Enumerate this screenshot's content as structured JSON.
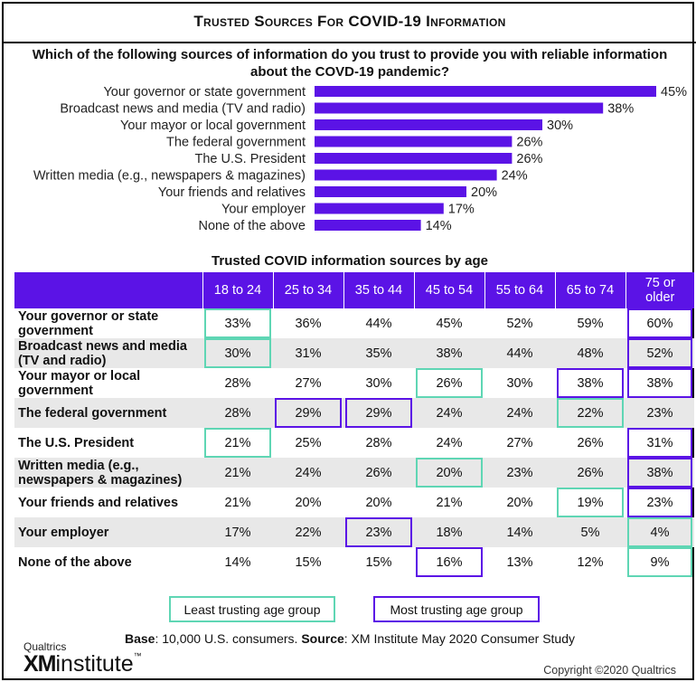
{
  "title": "Trusted Sources For COVID-19 Information",
  "question": "Which of the following sources of information do you trust to provide you with reliable information about the COVD-19 pandemic?",
  "chart_data": [
    {
      "type": "bar",
      "orientation": "horizontal",
      "categories": [
        "Your governor or state government",
        "Broadcast news and media (TV and radio)",
        "Your mayor or local government",
        "The federal government",
        "The U.S. President",
        "Written media (e.g., newspapers & magazines)",
        "Your friends and relatives",
        "Your employer",
        "None of the above"
      ],
      "values": [
        45,
        38,
        30,
        26,
        26,
        24,
        20,
        17,
        14
      ],
      "value_labels": [
        "45%",
        "38%",
        "30%",
        "26%",
        "26%",
        "24%",
        "20%",
        "17%",
        "14%"
      ],
      "bar_color": "#5b13e6",
      "xlim": [
        0,
        45
      ]
    },
    {
      "type": "table",
      "title": "Trusted COVID information sources by age",
      "columns": [
        "18 to 24",
        "25 to 34",
        "35 to 44",
        "45 to 54",
        "55 to 64",
        "65 to 74",
        "75 or older"
      ],
      "rows": [
        {
          "label": "Your governor or state government",
          "values": [
            "33%",
            "36%",
            "44%",
            "45%",
            "52%",
            "59%",
            "60%"
          ],
          "least": 0,
          "most": 6
        },
        {
          "label": "Broadcast news and media (TV and radio)",
          "values": [
            "30%",
            "31%",
            "35%",
            "38%",
            "44%",
            "48%",
            "52%"
          ],
          "least": 0,
          "most": 6
        },
        {
          "label": "Your mayor or local government",
          "values": [
            "28%",
            "27%",
            "30%",
            "26%",
            "30%",
            "38%",
            "38%"
          ],
          "least": 3,
          "most": [
            5,
            6
          ]
        },
        {
          "label": "The federal government",
          "values": [
            "28%",
            "29%",
            "29%",
            "24%",
            "24%",
            "22%",
            "23%"
          ],
          "least": 5,
          "most": [
            1,
            2
          ]
        },
        {
          "label": "The U.S. President",
          "values": [
            "21%",
            "25%",
            "28%",
            "24%",
            "27%",
            "26%",
            "31%"
          ],
          "least": 0,
          "most": 6
        },
        {
          "label": "Written media (e.g., newspapers & magazines)",
          "values": [
            "21%",
            "24%",
            "26%",
            "20%",
            "23%",
            "26%",
            "38%"
          ],
          "least": 3,
          "most": 6
        },
        {
          "label": "Your friends and relatives",
          "values": [
            "21%",
            "20%",
            "20%",
            "21%",
            "20%",
            "19%",
            "23%"
          ],
          "least": 5,
          "most": 6
        },
        {
          "label": "Your employer",
          "values": [
            "17%",
            "22%",
            "23%",
            "18%",
            "14%",
            "5%",
            "4%"
          ],
          "least": 6,
          "most": 2
        },
        {
          "label": "None of the above",
          "values": [
            "14%",
            "15%",
            "15%",
            "16%",
            "13%",
            "12%",
            "9%"
          ],
          "least": 6,
          "most": 3
        }
      ],
      "least_color": "#5fd6b4",
      "most_color": "#5b13e6"
    }
  ],
  "legend": {
    "least": "Least trusting age group",
    "most": "Most trusting age group"
  },
  "footer": {
    "base_label": "Base",
    "base_text": ": 10,000 U.S. consumers. ",
    "source_label": "Source",
    "source_text": ": XM Institute May 2020 Consumer Study",
    "logo_small": "Qualtrics",
    "logo_xm": "XM",
    "logo_institute": "institute",
    "logo_tm": "™",
    "copyright": "Copyright ©2020 Qualtrics"
  }
}
